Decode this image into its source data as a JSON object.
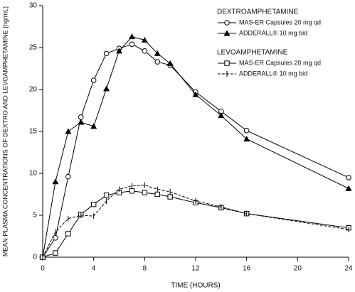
{
  "chart_data": {
    "type": "line",
    "xlabel": "TIME (HOURS)",
    "ylabel": "MEAN PLASMA CONCENTRATIONS OF DEXTRO AND LEVOAMPHETAMINE (ng/mL)",
    "x": [
      0,
      1,
      2,
      3,
      4,
      5,
      6,
      7,
      8,
      9,
      10,
      12,
      14,
      16,
      24
    ],
    "legend_titles": [
      "DEXTROAMPHETAMINE",
      "LEVOAMPHETAMINE"
    ],
    "series": [
      {
        "name": "MAS-ER Capsules 20 mg qd",
        "color": "#000000",
        "marker": "circle",
        "dashed": false,
        "values": [
          0,
          2.3,
          9.6,
          16.7,
          21.1,
          24.3,
          24.9,
          25.4,
          24.6,
          23.3,
          22.9,
          19.7,
          17.4,
          15.1,
          9.5
        ]
      },
      {
        "name": "ADDERALL® 10 mg bid",
        "color": "#000000",
        "marker": "triangle",
        "dashed": false,
        "values": [
          0,
          9.0,
          15.0,
          16.1,
          15.6,
          20.1,
          24.6,
          26.3,
          25.9,
          24.3,
          23.1,
          19.4,
          16.9,
          14.1,
          8.2
        ]
      },
      {
        "name": "MAS-ER Capsules 20 mg qd",
        "color": "#000000",
        "marker": "square",
        "dashed": false,
        "values": [
          0,
          0.5,
          2.8,
          5.1,
          6.3,
          7.4,
          7.7,
          7.9,
          7.7,
          7.5,
          7.2,
          6.5,
          5.9,
          5.2,
          3.5
        ]
      },
      {
        "name": "ADDERALL® 10 mg bid",
        "color": "#000000",
        "marker": "tick",
        "dashed": true,
        "values": [
          0,
          3.0,
          4.6,
          5.0,
          4.9,
          6.7,
          8.1,
          8.5,
          8.6,
          8.1,
          7.8,
          6.7,
          6.0,
          5.2,
          3.3
        ]
      }
    ],
    "xlim": [
      0,
      24
    ],
    "xticks": [
      0,
      4,
      8,
      12,
      16,
      20,
      24
    ],
    "ylim": [
      0,
      30
    ],
    "yticks": [
      0,
      5,
      10,
      15,
      20,
      25,
      30
    ]
  }
}
